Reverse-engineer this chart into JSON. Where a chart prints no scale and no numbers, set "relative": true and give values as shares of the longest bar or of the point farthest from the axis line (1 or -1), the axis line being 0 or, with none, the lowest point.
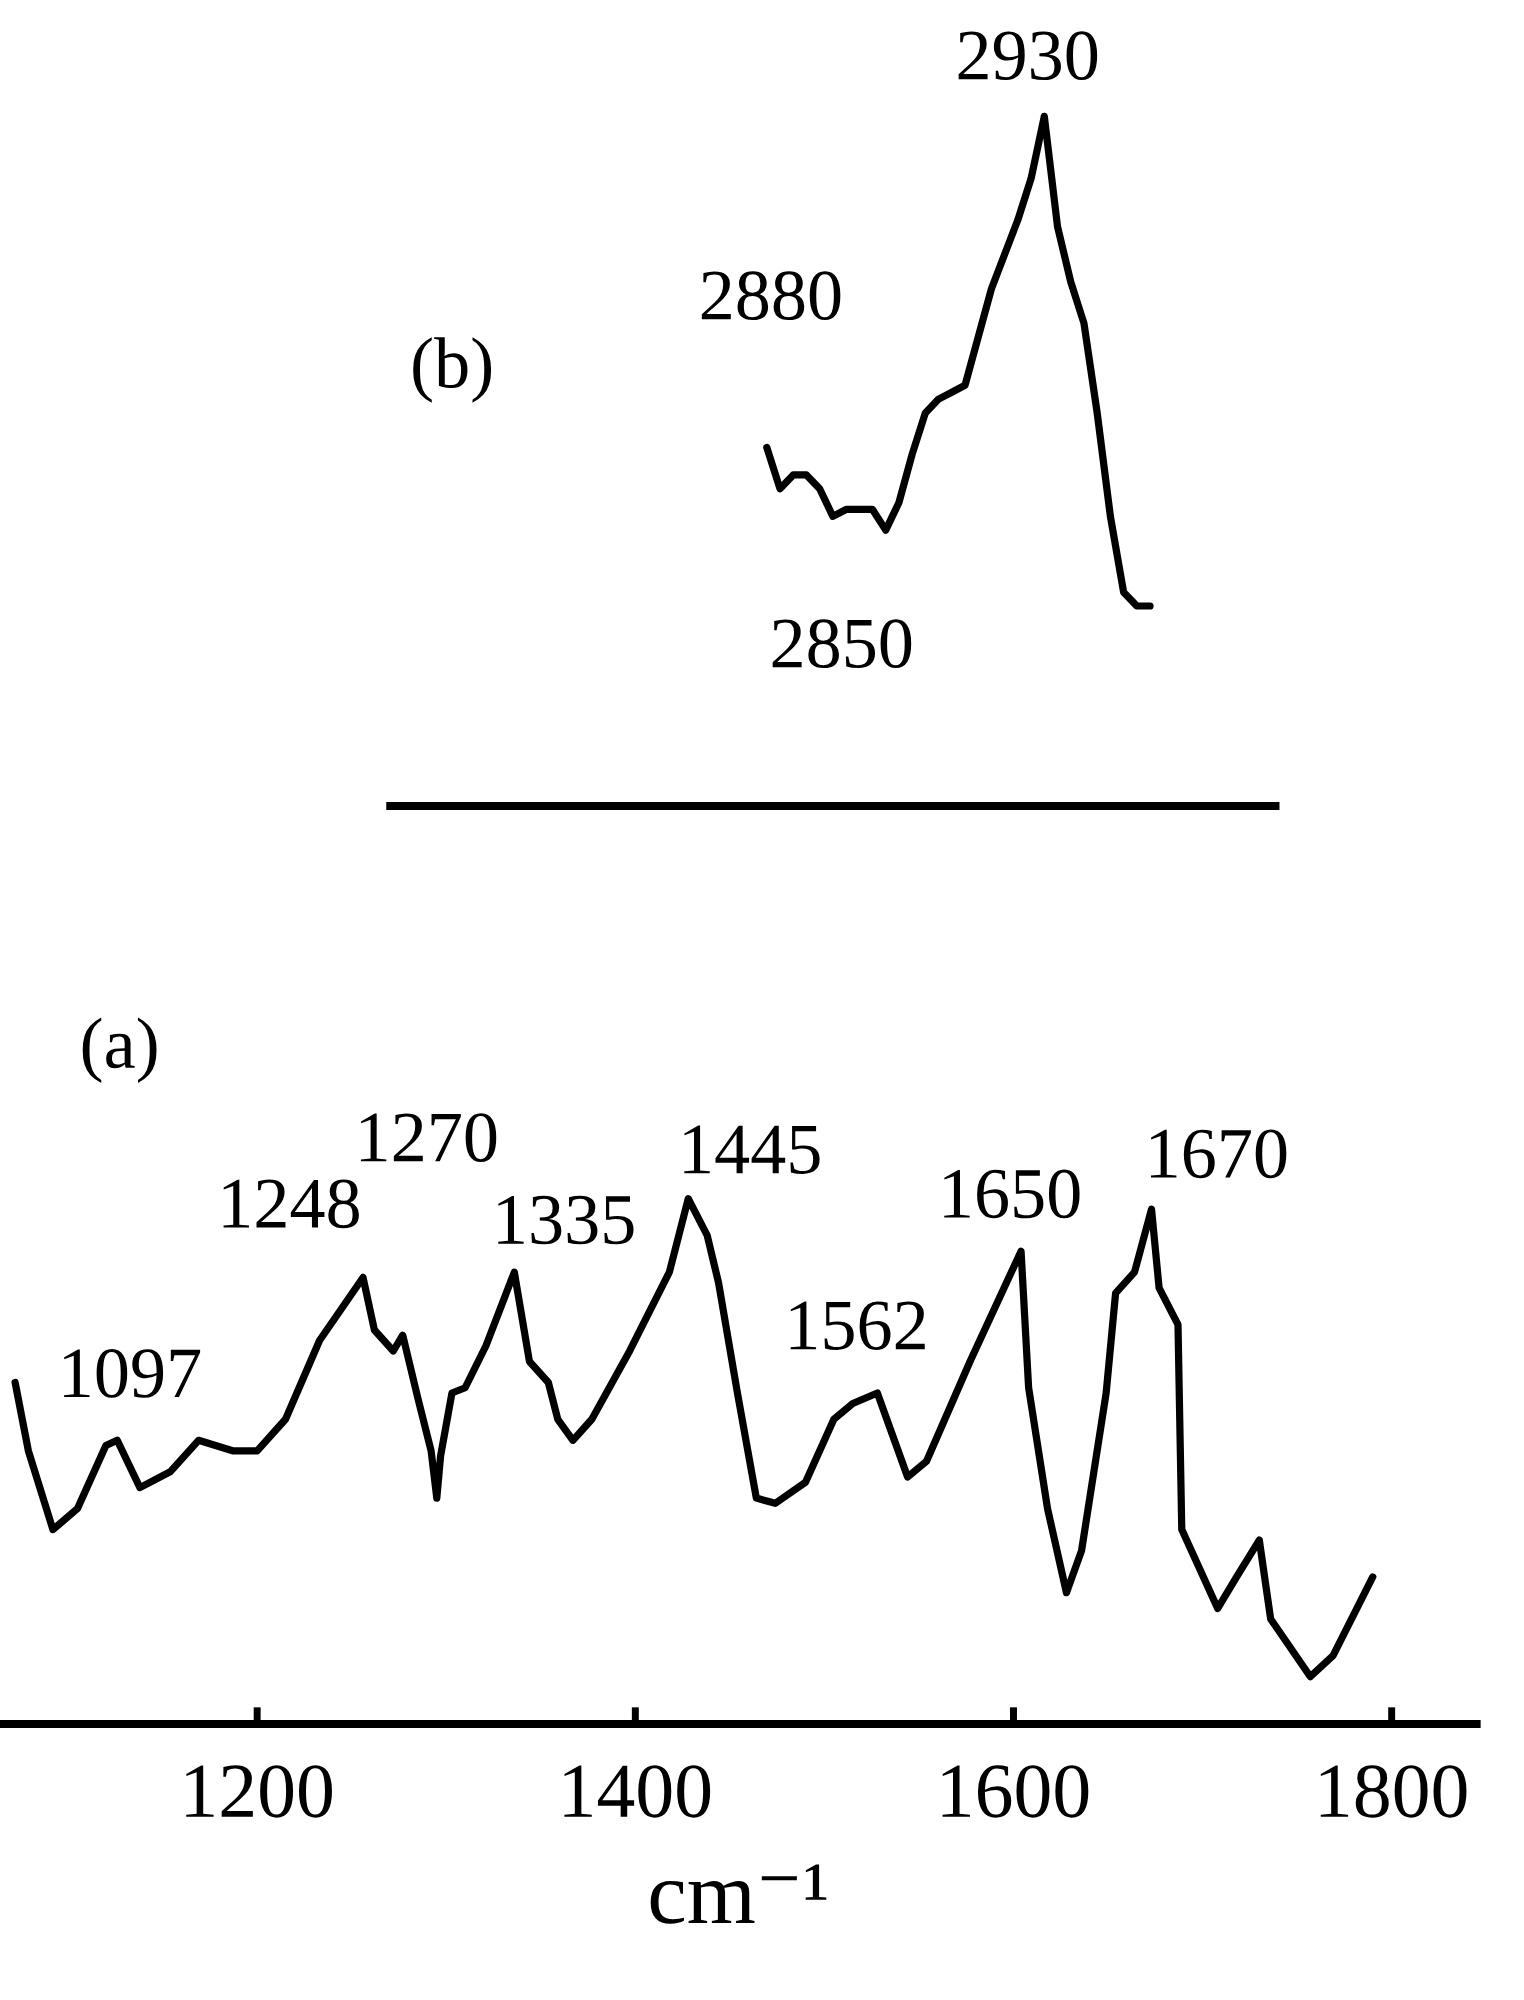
{
  "chart_data": [
    {
      "type": "line",
      "relative": true,
      "categories": [
        null,
        null,
        null,
        null,
        null,
        null,
        null,
        null,
        null,
        null,
        null,
        null,
        null,
        null,
        null,
        null,
        null,
        null,
        null,
        null,
        null,
        null,
        null,
        null,
        null,
        null,
        null,
        null,
        null,
        null,
        null,
        null,
        null,
        null,
        null,
        null,
        null,
        null,
        null,
        null,
        null,
        null,
        null,
        null,
        null,
        null,
        null,
        null,
        null,
        null,
        null,
        null,
        null,
        null,
        null,
        null,
        null,
        null,
        null,
        null,
        null,
        null,
        null,
        null,
        null,
        null,
        null
      ],
      "series": [
        {
          "color": "#000000",
          "values": [
            null,
            null,
            null,
            null,
            null,
            null,
            null,
            null,
            null,
            null,
            null,
            null,
            null,
            null,
            null,
            null,
            null,
            null,
            null,
            null,
            null,
            null,
            null,
            null,
            null,
            null,
            null,
            null,
            0.52,
            0.46,
            0.48,
            0.48,
            0.46,
            0.42,
            0.43,
            0.43,
            0.43,
            0.4,
            0.44,
            0.51,
            0.57,
            0.59,
            0.6,
            0.61,
            0.68,
            0.75,
            0.8,
            0.85,
            0.91,
            1.0,
            0.84,
            0.76,
            0.7,
            0.57,
            0.42,
            0.31,
            0.29,
            0.29,
            null,
            null,
            null,
            null,
            null,
            null,
            null,
            null,
            null
          ]
        }
      ],
      "annotations": [
        "(b)",
        "2880",
        "2930",
        "2850"
      ],
      "grid": false,
      "marker": "none",
      "line_style": "solid"
    },
    {
      "type": "line",
      "relative": true,
      "xlabel": "cm⁻¹",
      "xlim": [
        1064,
        1845
      ],
      "xticks": [
        1200,
        1400,
        1600,
        1800
      ],
      "series": [
        {
          "color": "#000000",
          "x": [
            1072,
            1079,
            1092,
            1105,
            1120,
            1126,
            1138,
            1154,
            1169,
            1187,
            1200,
            1215,
            1233,
            1256,
            1262,
            1272,
            1277,
            1285,
            1292,
            1295,
            1297,
            1303,
            1310,
            1321,
            1336,
            1344,
            1354,
            1359,
            1367,
            1377,
            1397,
            1418,
            1428,
            1438,
            1444,
            1454,
            1464,
            1474,
            1490,
            1505,
            1515,
            1528,
            1533,
            1544,
            1554,
            1577,
            1604,
            1608,
            1618,
            1628,
            1636,
            1649,
            1654,
            1664,
            1673,
            1677,
            1687,
            1689,
            1708,
            1718,
            1730,
            1736,
            1757,
            1769,
            1790
          ],
          "values": [
            0.65,
            0.52,
            0.37,
            0.41,
            0.53,
            0.54,
            0.45,
            0.48,
            0.54,
            0.52,
            0.52,
            0.58,
            0.73,
            0.85,
            0.75,
            0.71,
            0.74,
            0.62,
            0.52,
            0.43,
            0.51,
            0.63,
            0.64,
            0.72,
            0.86,
            0.69,
            0.65,
            0.58,
            0.54,
            0.58,
            0.71,
            0.86,
            1.0,
            0.93,
            0.84,
            0.63,
            0.43,
            0.42,
            0.46,
            0.58,
            0.61,
            0.63,
            0.58,
            0.47,
            0.5,
            0.69,
            0.9,
            0.64,
            0.41,
            0.25,
            0.33,
            0.63,
            0.82,
            0.86,
            0.98,
            0.83,
            0.76,
            0.37,
            0.22,
            0.28,
            0.35,
            0.2,
            0.09,
            0.13,
            0.28
          ]
        }
      ],
      "annotations": [
        "(a)",
        "1097",
        "1248",
        "1270",
        "1335",
        "1445",
        "1562",
        "1650",
        "1670"
      ],
      "grid": false,
      "marker": "none",
      "line_style": "solid"
    }
  ]
}
